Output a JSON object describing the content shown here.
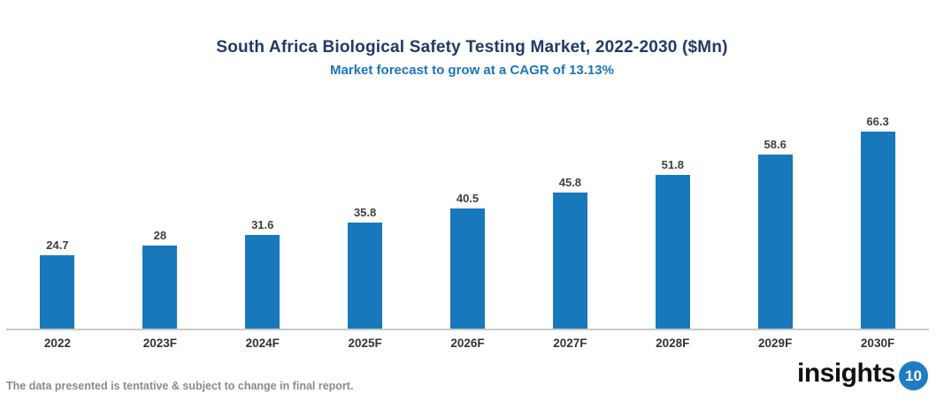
{
  "chart_data": {
    "type": "bar",
    "title": "South Africa Biological Safety Testing Market, 2022-2030 ($Mn)",
    "subtitle": "Market forecast to grow at a CAGR of 13.13%",
    "categories": [
      "2022",
      "2023F",
      "2024F",
      "2025F",
      "2026F",
      "2027F",
      "2028F",
      "2029F",
      "2030F"
    ],
    "values": [
      24.7,
      28,
      31.6,
      35.8,
      40.5,
      45.8,
      51.8,
      58.6,
      66.3
    ],
    "xlabel": "",
    "ylabel": "",
    "ylim": [
      0,
      70
    ],
    "grid": false,
    "legend": false,
    "data_labels": true
  },
  "colors": {
    "bar": "#1878BC",
    "title": "#203A68",
    "subtitle": "#1B75BB",
    "axis_line": "#C9C9C9",
    "value_label": "#3F3F3F",
    "tick_label": "#333333",
    "disclaimer": "#8A8A8A",
    "badge": "#1E7DC2"
  },
  "footer": {
    "disclaimer": "The data presented is tentative & subject to change in final report.",
    "brand_name": "insights",
    "brand_badge": "10"
  }
}
